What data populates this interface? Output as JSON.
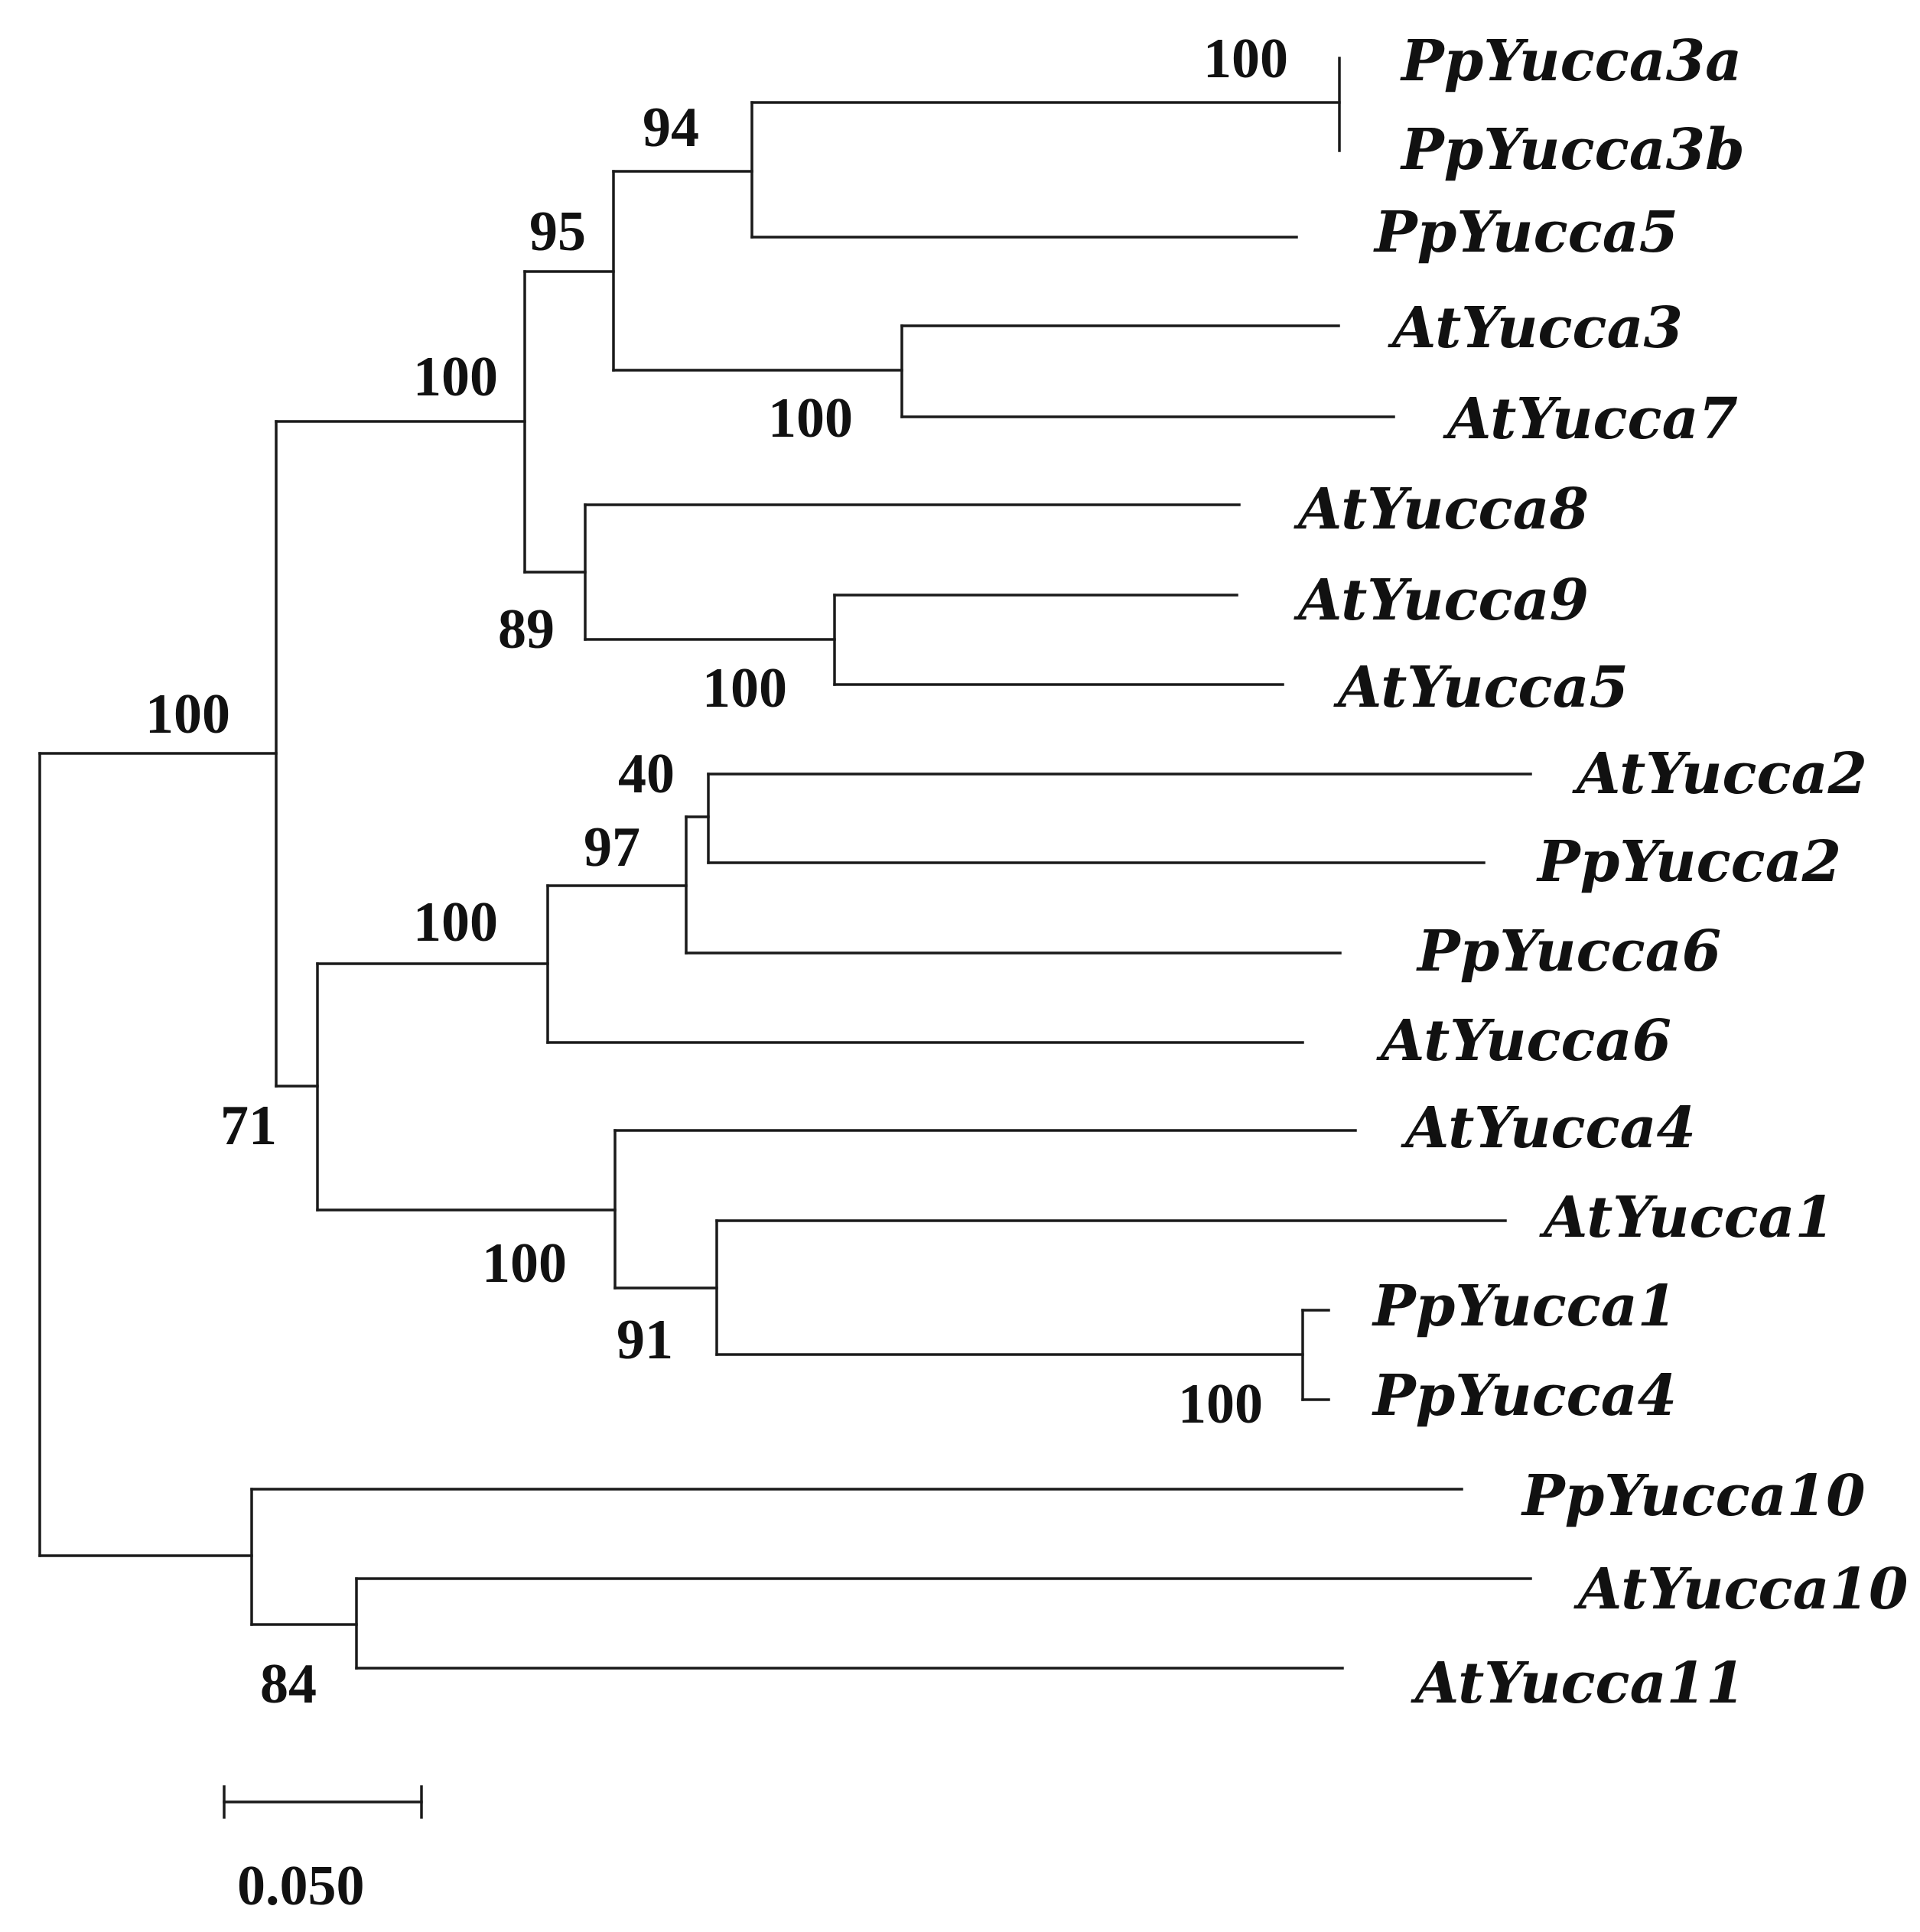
{
  "figure": {
    "type": "phylogenetic-tree",
    "leaves": [
      "PpYucca3a",
      "PpYucca3b",
      "PpYucca5",
      "AtYucca3",
      "AtYucca7",
      "AtYucca8",
      "AtYucca9",
      "AtYucca5",
      "AtYucca2",
      "PpYucca2",
      "PpYucca6",
      "AtYucca6",
      "AtYucca4",
      "AtYucca1",
      "PpYucca1",
      "PpYucca4",
      "PpYucca10",
      "AtYucca10",
      "AtYucca11"
    ],
    "bootstrap": {
      "pp3a_pp3b": "100",
      "pp3_pp5": "94",
      "pp_at3_7": "95",
      "at3_at7": "100",
      "upper_clade": "100",
      "at8_clade": "89",
      "at9_at5": "100",
      "ingroup": "100",
      "at2_pp2": "40",
      "at2_pp2_pp6": "97",
      "yucca2_6_clade": "100",
      "middle_clade": "71",
      "yucca4_1_clade": "100",
      "at1_pp_clade": "91",
      "pp1_pp4": "100",
      "yucca10_11_clade": "84"
    },
    "scale_bar": {
      "label": "0.050",
      "value": 0.05
    }
  }
}
